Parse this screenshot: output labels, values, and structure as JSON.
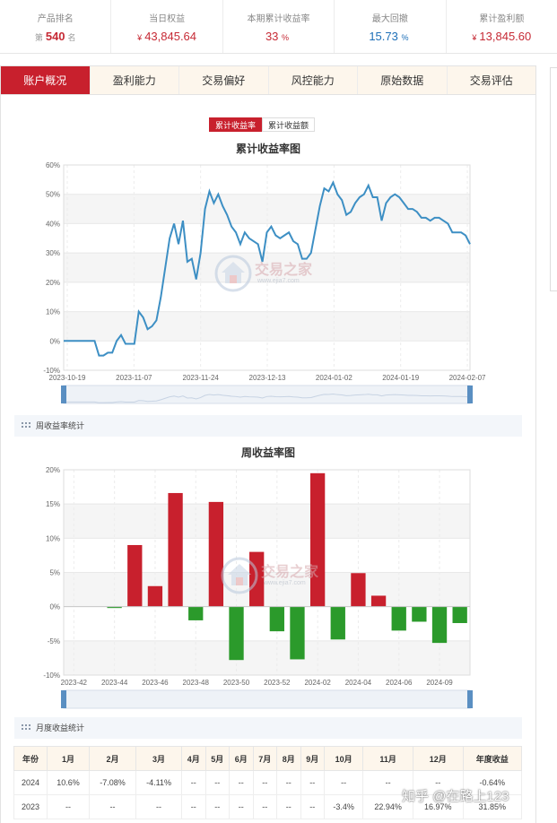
{
  "stats": {
    "rank": {
      "label": "产品排名",
      "prefix": "第",
      "value": "540",
      "suffix": "名"
    },
    "equity": {
      "label": "当日权益",
      "currency": "¥",
      "value": "43,845.64"
    },
    "return": {
      "label": "本期累计收益率",
      "value": "33",
      "unit": "%"
    },
    "drawdown": {
      "label": "最大回撤",
      "value": "15.73",
      "unit": "%"
    },
    "profit": {
      "label": "累计盈利额",
      "currency": "¥",
      "value": "13,845.60"
    }
  },
  "tabs": [
    "账户概况",
    "盈利能力",
    "交易偏好",
    "风控能力",
    "原始数据",
    "交易评估"
  ],
  "toggle": {
    "rate": "累计收益率",
    "amount": "累计收益额"
  },
  "watermark": {
    "name": "交易之家",
    "url": "www.ejia7.com"
  },
  "sections": {
    "weekly": "周收益率统计",
    "monthly": "月度收益统计"
  },
  "chart_data": [
    {
      "type": "line",
      "title": "累计收益率图",
      "y_ticks": [
        "60%",
        "50%",
        "40%",
        "30%",
        "20%",
        "10%",
        "0%",
        "-10%"
      ],
      "ylim": [
        -10,
        60
      ],
      "x_ticks": [
        "2023-10-19",
        "2023-11-07",
        "2023-11-24",
        "2023-12-13",
        "2024-01-02",
        "2024-01-19",
        "2024-02-07"
      ],
      "values": [
        0,
        0,
        0,
        0,
        0,
        0,
        0,
        0,
        -5,
        -5,
        -4,
        -4,
        0,
        2,
        -1,
        -1,
        -1,
        10,
        8,
        4,
        5,
        7,
        15,
        25,
        35,
        40,
        33,
        41,
        27,
        28,
        21,
        30,
        45,
        51,
        47,
        50,
        46,
        43,
        39,
        37,
        33,
        37,
        35,
        34,
        33,
        27,
        37,
        39,
        36,
        35,
        36,
        37,
        34,
        33,
        28,
        28,
        30,
        38,
        46,
        52,
        51,
        54,
        50,
        48,
        43,
        44,
        47,
        49,
        50,
        53,
        49,
        49,
        41,
        47,
        49,
        50,
        49,
        47,
        45,
        45,
        44,
        42,
        42,
        41,
        42,
        42,
        41,
        40,
        37,
        37,
        37,
        36,
        33
      ],
      "grid": true
    },
    {
      "type": "bar",
      "title": "周收益率图",
      "y_ticks": [
        "20%",
        "15%",
        "10%",
        "5%",
        "0%",
        "-5%",
        "-10%"
      ],
      "ylim": [
        -10,
        20
      ],
      "x_ticks": [
        "2023-42",
        "2023-44",
        "2023-46",
        "2023-48",
        "2023-50",
        "2023-52",
        "2024-02",
        "2024-04",
        "2024-06",
        "2024-09"
      ],
      "values": [
        0,
        0,
        -0.2,
        9,
        3,
        16.6,
        -2,
        15.3,
        -7.8,
        8,
        -3.6,
        -7.7,
        19.5,
        -4.8,
        4.9,
        1.6,
        -3.5,
        -2.2,
        -5.3,
        -2.4
      ],
      "colors": {
        "positive": "#c8202d",
        "negative": "#2b9a2b"
      },
      "grid": true
    }
  ],
  "monthly": {
    "headers": [
      "年份",
      "1月",
      "2月",
      "3月",
      "4月",
      "5月",
      "6月",
      "7月",
      "8月",
      "9月",
      "10月",
      "11月",
      "12月",
      "年度收益"
    ],
    "rows": [
      [
        "2024",
        "10.6%",
        "-7.08%",
        "-4.11%",
        "--",
        "--",
        "--",
        "--",
        "--",
        "--",
        "--",
        "--",
        "--",
        "-0.64%"
      ],
      [
        "2023",
        "--",
        "--",
        "--",
        "--",
        "--",
        "--",
        "--",
        "--",
        "--",
        "-3.4%",
        "22.94%",
        "16.97%",
        "31.85%"
      ]
    ]
  },
  "overlay_text": "知乎 @在路上123"
}
